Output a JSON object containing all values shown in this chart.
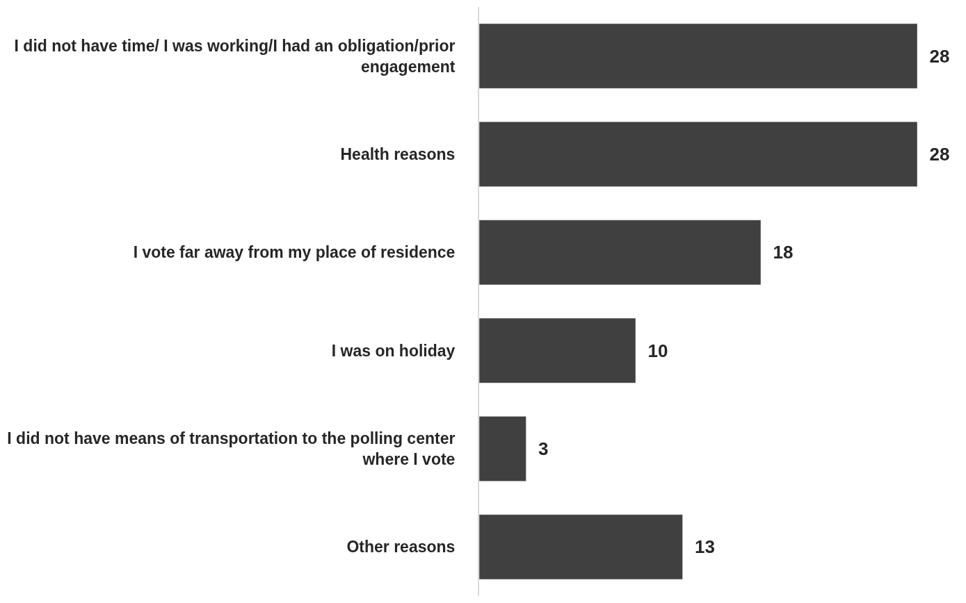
{
  "chart_data": {
    "type": "bar",
    "orientation": "horizontal",
    "categories": [
      "I did not have time/ I was working/I had an obligation/prior engagement",
      "Health reasons",
      "I vote far away from my place of residence",
      "I was on holiday",
      "I did not have means of transportation to the polling center where I vote",
      "Other reasons"
    ],
    "values": [
      28,
      28,
      18,
      10,
      3,
      13
    ],
    "color": "#404040",
    "data_labels": true
  }
}
